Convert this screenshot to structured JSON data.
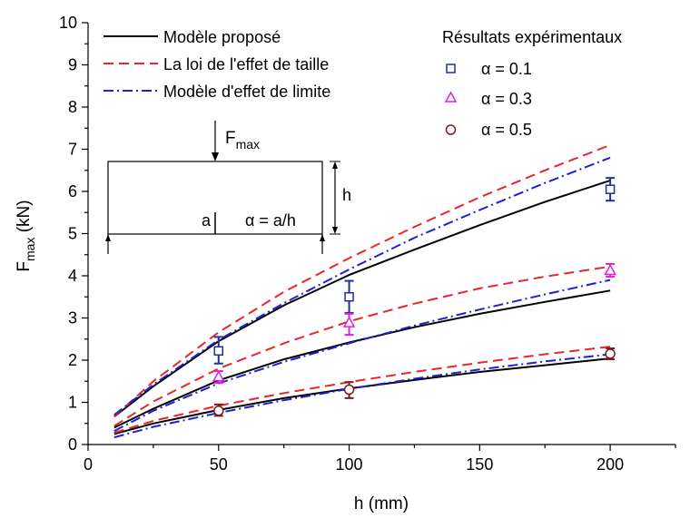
{
  "chart_data": {
    "type": "line",
    "xlabel": "h (mm)",
    "ylabel_main": "F",
    "ylabel_sub": "max",
    "ylabel_unit": " (kN)",
    "xlim": [
      0,
      225
    ],
    "ylim": [
      0,
      10
    ],
    "xticks": [
      0,
      50,
      100,
      150,
      200
    ],
    "yticks": [
      0,
      1,
      2,
      3,
      4,
      5,
      6,
      7,
      8,
      9,
      10
    ],
    "grid": false,
    "legend_position": "top",
    "model_legend": [
      {
        "key": "solid",
        "label": "Modèle proposé",
        "color": "#000000"
      },
      {
        "key": "dashed",
        "label": "La loi de l'effet de taille",
        "color": "#e8262b"
      },
      {
        "key": "dashdot",
        "label": "Modèle d'effet de limite",
        "color": "#1f1fd6"
      }
    ],
    "exp_legend_title": "Résultats expérimentaux",
    "exp_legend": [
      {
        "symbol": "α = 0.1",
        "marker": "square",
        "color": "#1f2fa0"
      },
      {
        "symbol": "α = 0.3",
        "marker": "triangle",
        "color": "#e020e0"
      },
      {
        "symbol": "α = 0.5",
        "marker": "circle",
        "color": "#7a1a1a"
      }
    ],
    "series": [
      {
        "name": "Modèle proposé",
        "alpha": "0.1",
        "style": "solid",
        "color": "#000000",
        "x": [
          10,
          25,
          50,
          75,
          100,
          125,
          150,
          175,
          200
        ],
        "y": [
          0.66,
          1.38,
          2.45,
          3.3,
          4.02,
          4.62,
          5.2,
          5.75,
          6.26
        ]
      },
      {
        "name": "La loi de l'effet de taille",
        "alpha": "0.1",
        "style": "dashed",
        "color": "#e8262b",
        "x": [
          10,
          25,
          50,
          75,
          100,
          125,
          150,
          175,
          200
        ],
        "y": [
          0.66,
          1.5,
          2.66,
          3.62,
          4.42,
          5.16,
          5.86,
          6.5,
          7.1
        ]
      },
      {
        "name": "Modèle d'effet de limite",
        "alpha": "0.1",
        "style": "dashdot",
        "color": "#1f1fd6",
        "x": [
          10,
          25,
          50,
          75,
          100,
          125,
          150,
          175,
          200
        ],
        "y": [
          0.7,
          1.42,
          2.48,
          3.35,
          4.15,
          4.9,
          5.56,
          6.2,
          6.8
        ]
      },
      {
        "name": "Modèle proposé",
        "alpha": "0.3",
        "style": "solid",
        "color": "#000000",
        "x": [
          10,
          25,
          50,
          75,
          100,
          125,
          150,
          175,
          200
        ],
        "y": [
          0.4,
          0.85,
          1.52,
          2.02,
          2.42,
          2.78,
          3.1,
          3.38,
          3.65
        ]
      },
      {
        "name": "La loi de l'effet de taille",
        "alpha": "0.3",
        "style": "dashed",
        "color": "#e8262b",
        "x": [
          10,
          25,
          50,
          75,
          100,
          125,
          150,
          175,
          200
        ],
        "y": [
          0.44,
          1.02,
          1.8,
          2.4,
          2.92,
          3.34,
          3.7,
          3.98,
          4.22
        ]
      },
      {
        "name": "Modèle d'effet de limite",
        "alpha": "0.3",
        "style": "dashdot",
        "color": "#1f1fd6",
        "x": [
          10,
          25,
          50,
          75,
          100,
          125,
          150,
          175,
          200
        ],
        "y": [
          0.32,
          0.8,
          1.45,
          1.96,
          2.4,
          2.82,
          3.2,
          3.56,
          3.9
        ]
      },
      {
        "name": "Modèle proposé",
        "alpha": "0.5",
        "style": "solid",
        "color": "#000000",
        "x": [
          10,
          25,
          50,
          75,
          100,
          125,
          150,
          175,
          200
        ],
        "y": [
          0.25,
          0.5,
          0.82,
          1.1,
          1.33,
          1.53,
          1.72,
          1.88,
          2.04
        ]
      },
      {
        "name": "La loi de l'effet de taille",
        "alpha": "0.5",
        "style": "dashed",
        "color": "#e8262b",
        "x": [
          10,
          25,
          50,
          75,
          100,
          125,
          150,
          175,
          200
        ],
        "y": [
          0.28,
          0.56,
          0.92,
          1.22,
          1.48,
          1.72,
          1.94,
          2.14,
          2.32
        ]
      },
      {
        "name": "Modèle d'effet de limite",
        "alpha": "0.5",
        "style": "dashdot",
        "color": "#1f1fd6",
        "x": [
          10,
          25,
          50,
          75,
          100,
          125,
          150,
          175,
          200
        ],
        "y": [
          0.17,
          0.42,
          0.75,
          1.05,
          1.32,
          1.56,
          1.78,
          1.97,
          2.14
        ]
      }
    ],
    "experimental": [
      {
        "alpha": "0.1",
        "marker": "square",
        "color": "#1f2fa0",
        "points": [
          {
            "x": 50,
            "y": 2.22,
            "err_low": 1.92,
            "err_high": 2.55
          },
          {
            "x": 100,
            "y": 3.5,
            "err_low": 3.12,
            "err_high": 3.88
          },
          {
            "x": 200,
            "y": 6.05,
            "err_low": 5.78,
            "err_high": 6.32
          }
        ]
      },
      {
        "alpha": "0.3",
        "marker": "triangle",
        "color": "#e020e0",
        "points": [
          {
            "x": 50,
            "y": 1.6,
            "err_low": 1.46,
            "err_high": 1.74
          },
          {
            "x": 100,
            "y": 2.88,
            "err_low": 2.6,
            "err_high": 3.1
          },
          {
            "x": 200,
            "y": 4.12,
            "err_low": 3.98,
            "err_high": 4.28
          }
        ]
      },
      {
        "alpha": "0.5",
        "marker": "circle",
        "color": "#7a1a1a",
        "points": [
          {
            "x": 50,
            "y": 0.8,
            "err_low": 0.68,
            "err_high": 0.95
          },
          {
            "x": 100,
            "y": 1.3,
            "err_low": 1.1,
            "err_high": 1.48
          },
          {
            "x": 200,
            "y": 2.15,
            "err_low": 2.02,
            "err_high": 2.28
          }
        ]
      }
    ],
    "schematic": {
      "force_main": "F",
      "force_sub": "max",
      "height_label": "h",
      "crack_label": "a",
      "ratio_label": "α = a/h"
    }
  }
}
